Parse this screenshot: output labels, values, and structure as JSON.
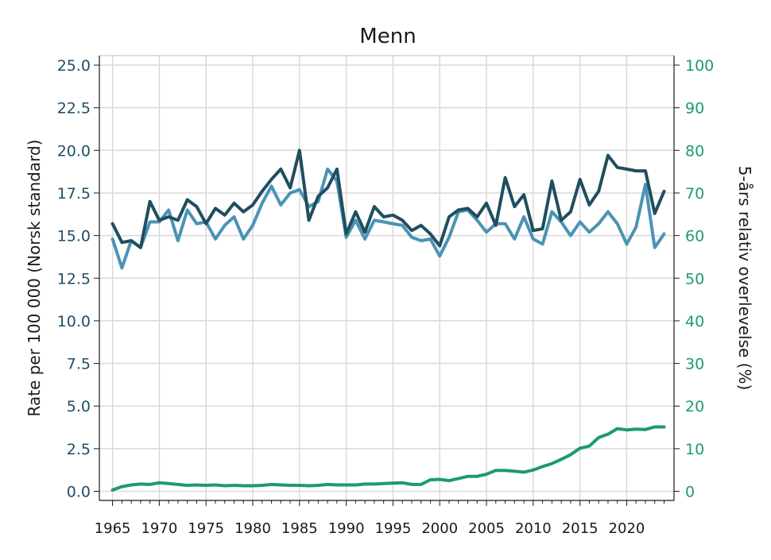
{
  "chart_data": {
    "type": "line",
    "title": "Menn",
    "ylabel": "Rate per 100 000 (Norsk standard)",
    "y2label": "5-års relativ overlevelse (%)",
    "ylim": [
      0,
      25
    ],
    "y2lim": [
      0,
      100
    ],
    "xlim": [
      1965,
      2024
    ],
    "grid": true,
    "legend": "none",
    "x_ticks": [
      "1965",
      "1970",
      "1975",
      "1980",
      "1985",
      "1990",
      "1995",
      "2000",
      "2005",
      "2010",
      "2015",
      "2020"
    ],
    "y_ticks": [
      "0.0",
      "2.5",
      "5.0",
      "7.5",
      "10.0",
      "12.5",
      "15.0",
      "17.5",
      "20.0",
      "22.5",
      "25.0"
    ],
    "y2_ticks": [
      "0",
      "10",
      "20",
      "30",
      "40",
      "50",
      "60",
      "70",
      "80",
      "90",
      "100"
    ],
    "colors": {
      "series1": "#1f4e5f",
      "series2": "#4a93b5",
      "series3": "#1e9b6a",
      "grid": "#d9d9d9"
    },
    "x": [
      1965,
      1966,
      1967,
      1968,
      1969,
      1970,
      1971,
      1972,
      1973,
      1974,
      1975,
      1976,
      1977,
      1978,
      1979,
      1980,
      1981,
      1982,
      1983,
      1984,
      1985,
      1986,
      1987,
      1988,
      1989,
      1990,
      1991,
      1992,
      1993,
      1994,
      1995,
      1996,
      1997,
      1998,
      1999,
      2000,
      2001,
      2002,
      2003,
      2004,
      2005,
      2006,
      2007,
      2008,
      2009,
      2010,
      2011,
      2012,
      2013,
      2014,
      2015,
      2016,
      2017,
      2018,
      2019,
      2020,
      2021,
      2022,
      2023,
      2024
    ],
    "series": [
      {
        "axis": "left",
        "values": [
          15.7,
          14.6,
          14.7,
          14.3,
          17.0,
          15.9,
          16.1,
          15.9,
          17.1,
          16.7,
          15.7,
          16.6,
          16.2,
          16.9,
          16.4,
          16.8,
          17.6,
          18.3,
          18.9,
          17.8,
          20.0,
          15.9,
          17.3,
          17.8,
          18.9,
          15.1,
          16.4,
          15.2,
          16.7,
          16.1,
          16.2,
          15.9,
          15.3,
          15.6,
          15.1,
          14.4,
          16.1,
          16.5,
          16.6,
          16.1,
          16.9,
          15.6,
          18.4,
          16.7,
          17.4,
          15.3,
          15.4,
          18.2,
          15.9,
          16.4,
          18.3,
          16.8,
          17.6,
          19.7,
          19.0,
          18.9,
          18.8,
          18.8,
          16.3,
          17.6
        ]
      },
      {
        "axis": "left",
        "values": [
          14.8,
          13.1,
          14.7,
          14.3,
          15.8,
          15.8,
          16.5,
          14.7,
          16.5,
          15.7,
          15.8,
          14.8,
          15.6,
          16.1,
          14.8,
          15.6,
          16.9,
          17.9,
          16.8,
          17.5,
          17.7,
          16.7,
          17.0,
          18.9,
          18.2,
          14.9,
          15.9,
          14.8,
          15.9,
          15.8,
          15.7,
          15.6,
          14.9,
          14.7,
          14.8,
          13.8,
          14.9,
          16.4,
          16.5,
          15.9,
          15.2,
          15.7,
          15.7,
          14.8,
          16.1,
          14.8,
          14.5,
          16.4,
          15.8,
          15.0,
          15.8,
          15.2,
          15.7,
          16.4,
          15.7,
          14.5,
          15.5,
          18.0,
          14.3,
          15.1
        ]
      },
      {
        "axis": "right",
        "values": [
          0.3,
          1.1,
          1.5,
          1.7,
          1.6,
          2.0,
          1.8,
          1.6,
          1.4,
          1.5,
          1.4,
          1.5,
          1.3,
          1.4,
          1.3,
          1.3,
          1.4,
          1.6,
          1.5,
          1.4,
          1.4,
          1.3,
          1.4,
          1.6,
          1.5,
          1.5,
          1.5,
          1.7,
          1.7,
          1.8,
          1.9,
          2.0,
          1.6,
          1.6,
          2.7,
          2.8,
          2.5,
          3.0,
          3.5,
          3.5,
          4.0,
          4.9,
          4.9,
          4.7,
          4.5,
          5.0,
          5.8,
          6.5,
          7.5,
          8.6,
          10.1,
          10.6,
          12.6,
          13.4,
          14.7,
          14.4,
          14.6,
          14.5,
          15.1,
          15.1
        ]
      }
    ]
  }
}
